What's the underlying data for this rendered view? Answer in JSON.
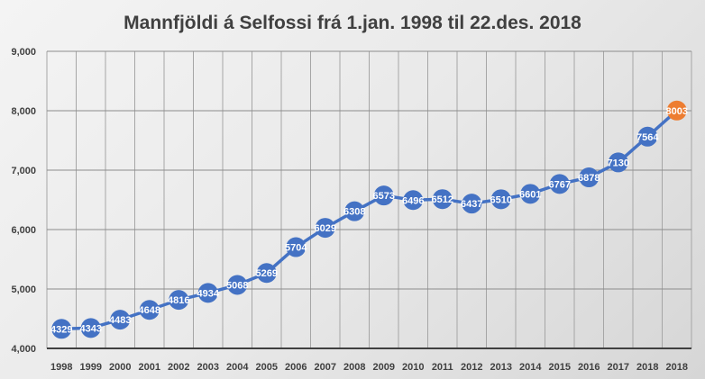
{
  "chart_data": {
    "type": "line",
    "title": "Mannfjöldi á Selfossi frá 1.jan. 1998 til 22.des. 2018",
    "xlabel": "",
    "ylabel": "",
    "categories": [
      "1998",
      "1999",
      "2000",
      "2001",
      "2002",
      "2003",
      "2004",
      "2005",
      "2006",
      "2007",
      "2008",
      "2009",
      "2010",
      "2011",
      "2012",
      "2013",
      "2014",
      "2015",
      "2016",
      "2017",
      "2018",
      "2018"
    ],
    "series": [
      {
        "name": "Mannfjöldi",
        "values": [
          4329,
          4343,
          4483,
          4648,
          4816,
          4934,
          5068,
          5269,
          5704,
          6029,
          6308,
          6573,
          6496,
          6512,
          6437,
          6510,
          6601,
          6767,
          6878,
          7130,
          7564,
          8003
        ]
      }
    ],
    "ylim": [
      4000,
      9000
    ],
    "yticks": [
      4000,
      5000,
      6000,
      7000,
      8000,
      9000
    ],
    "ytick_labels": [
      "4,000",
      "5,000",
      "6,000",
      "7,000",
      "8,000",
      "9,000"
    ],
    "grid": true,
    "legend": "none",
    "colors": {
      "line": "#4472c4",
      "marker": "#4472c4",
      "highlight": "#ed7d31"
    },
    "highlight_index": 21
  }
}
